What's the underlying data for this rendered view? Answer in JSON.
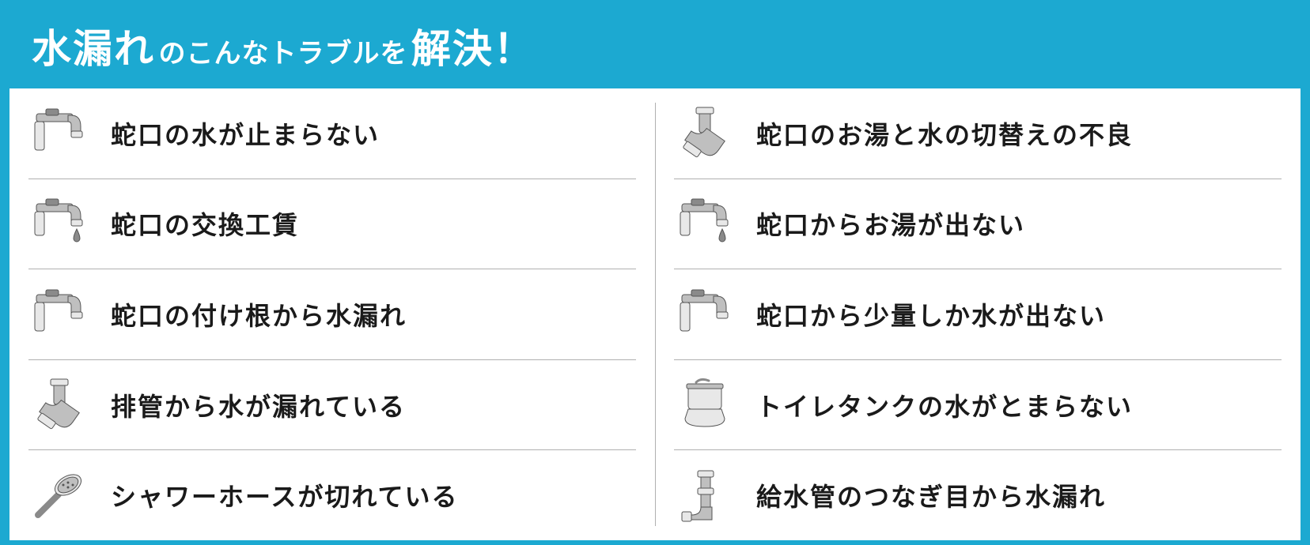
{
  "type": "infographic",
  "background_color": "#1ca9d1",
  "content_background": "#ffffff",
  "header": {
    "parts": [
      {
        "text": "水漏れ",
        "class": "h-big"
      },
      {
        "text": "のこんなトラブルを",
        "class": "h-mid"
      },
      {
        "text": "解決！",
        "class": "h-big"
      }
    ],
    "text_color": "#ffffff",
    "big_fontsize": 50,
    "mid_fontsize": 34
  },
  "divider_color": "#b0b0b0",
  "label_fontsize": 32,
  "label_color": "#1a1a1a",
  "left_items": [
    {
      "icon": "faucet",
      "label": "蛇口の水が止まらない"
    },
    {
      "icon": "faucet-drip",
      "label": "蛇口の交換工賃"
    },
    {
      "icon": "faucet",
      "label": "蛇口の付け根から水漏れ"
    },
    {
      "icon": "pipe-joint",
      "label": "排管から水が漏れている"
    },
    {
      "icon": "shower-head",
      "label": "シャワーホースが切れている"
    }
  ],
  "right_items": [
    {
      "icon": "pipe-joint",
      "label": "蛇口のお湯と水の切替えの不良"
    },
    {
      "icon": "faucet-drip",
      "label": "蛇口からお湯が出ない"
    },
    {
      "icon": "faucet",
      "label": "蛇口から少量しか水が出ない"
    },
    {
      "icon": "toilet-tank",
      "label": "トイレタンクの水がとまらない"
    },
    {
      "icon": "pipe-vertical",
      "label": "給水管のつなぎ目から水漏れ"
    }
  ],
  "icons": {
    "stroke": "#555555",
    "fill_light": "#e8e8e8",
    "fill_mid": "#bfbfbf",
    "fill_dark": "#8a8a8a"
  }
}
